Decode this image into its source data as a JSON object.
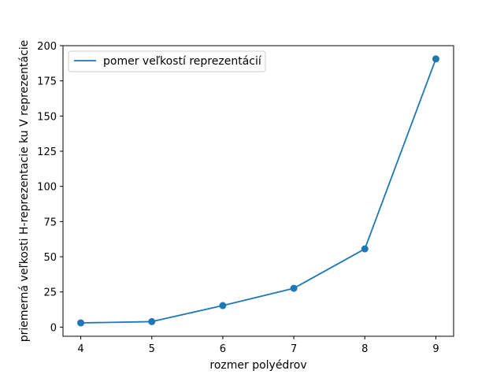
{
  "chart_data": {
    "type": "line",
    "title": "",
    "xlabel": "rozmer polyédrov",
    "ylabel": "priemerná veľkosti H-reprezentacie ku V reprezentácie",
    "x": [
      4,
      5,
      6,
      7,
      8,
      9
    ],
    "xticks": [
      4,
      5,
      6,
      7,
      8,
      9
    ],
    "yticks": [
      0,
      25,
      50,
      75,
      100,
      125,
      150,
      175,
      200
    ],
    "xlim": [
      3.75,
      9.25
    ],
    "ylim": [
      -6.5,
      200
    ],
    "grid": false,
    "legend_position": "top-left",
    "series": [
      {
        "name": "pomer veľkostí reprezentácií",
        "color": "#1f77b4",
        "marker": "circle",
        "values": [
          3.0,
          3.9,
          15.3,
          27.6,
          55.6,
          190.6
        ]
      }
    ]
  }
}
